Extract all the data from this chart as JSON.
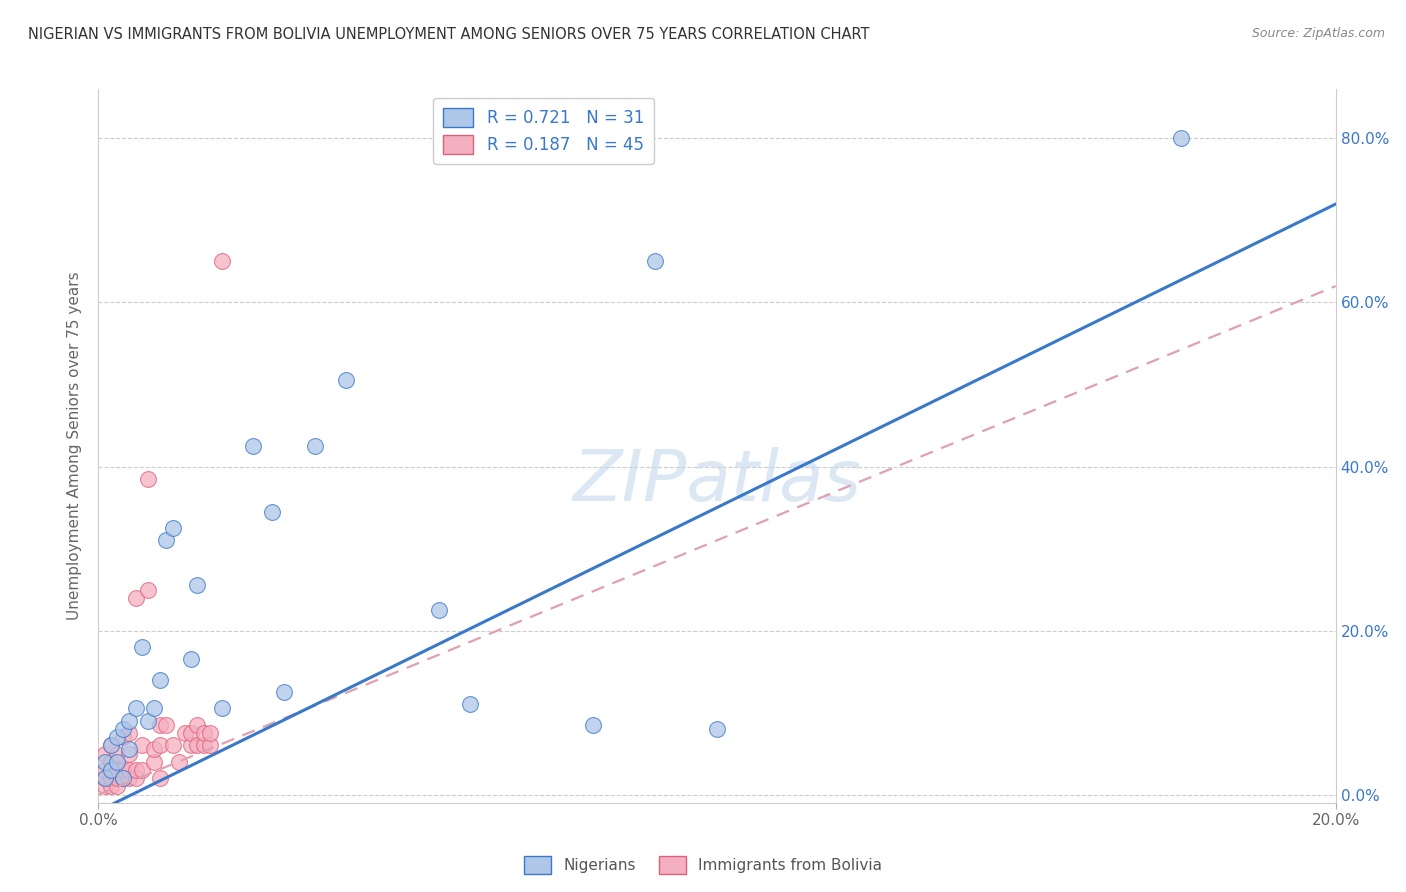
{
  "title": "NIGERIAN VS IMMIGRANTS FROM BOLIVIA UNEMPLOYMENT AMONG SENIORS OVER 75 YEARS CORRELATION CHART",
  "source": "Source: ZipAtlas.com",
  "ylabel": "Unemployment Among Seniors over 75 years",
  "watermark": "ZIPatlas",
  "R_nigerian": 0.721,
  "N_nigerian": 31,
  "R_bolivia": 0.187,
  "N_bolivia": 45,
  "xlim": [
    0.0,
    0.2
  ],
  "ylim": [
    -0.01,
    0.86
  ],
  "xticks": [
    0.0,
    0.2
  ],
  "xtick_labels": [
    "0.0%",
    "20.0%"
  ],
  "yticks_right": [
    0.0,
    0.2,
    0.4,
    0.6,
    0.8
  ],
  "ytick_labels_right": [
    "0.0%",
    "20.0%",
    "40.0%",
    "60.0%",
    "80.0%"
  ],
  "grid_yticks": [
    0.0,
    0.2,
    0.4,
    0.6,
    0.8
  ],
  "color_nigerian": "#aec6e8",
  "color_bolivia": "#f4afc0",
  "line_color_nigerian": "#3a78c9",
  "line_color_bolivia": "#e0607a",
  "line_color_bolivia_dashed": "#e0a0b0",
  "nigerian_line_x0": 0.0,
  "nigerian_line_y0": -0.02,
  "nigerian_line_x1": 0.2,
  "nigerian_line_y1": 0.72,
  "bolivia_line_x0": 0.0,
  "bolivia_line_y0": 0.0,
  "bolivia_line_x1": 0.2,
  "bolivia_line_y1": 0.62,
  "nigerian_x": [
    0.001,
    0.001,
    0.002,
    0.002,
    0.003,
    0.003,
    0.004,
    0.004,
    0.005,
    0.005,
    0.006,
    0.007,
    0.008,
    0.009,
    0.01,
    0.011,
    0.012,
    0.015,
    0.016,
    0.02,
    0.025,
    0.028,
    0.03,
    0.035,
    0.04,
    0.055,
    0.09,
    0.175,
    0.06,
    0.08,
    0.1
  ],
  "nigerian_y": [
    0.02,
    0.04,
    0.03,
    0.06,
    0.04,
    0.07,
    0.02,
    0.08,
    0.055,
    0.09,
    0.105,
    0.18,
    0.09,
    0.105,
    0.14,
    0.31,
    0.325,
    0.165,
    0.255,
    0.105,
    0.425,
    0.345,
    0.125,
    0.425,
    0.505,
    0.225,
    0.65,
    0.8,
    0.11,
    0.085,
    0.08
  ],
  "bolivia_x": [
    0.001,
    0.001,
    0.001,
    0.001,
    0.002,
    0.002,
    0.002,
    0.002,
    0.002,
    0.003,
    0.003,
    0.003,
    0.003,
    0.004,
    0.004,
    0.004,
    0.005,
    0.005,
    0.005,
    0.005,
    0.006,
    0.006,
    0.006,
    0.007,
    0.007,
    0.008,
    0.008,
    0.009,
    0.009,
    0.01,
    0.01,
    0.01,
    0.011,
    0.012,
    0.013,
    0.014,
    0.015,
    0.015,
    0.016,
    0.016,
    0.017,
    0.017,
    0.018,
    0.018,
    0.02
  ],
  "bolivia_y": [
    0.01,
    0.02,
    0.03,
    0.05,
    0.01,
    0.02,
    0.03,
    0.04,
    0.06,
    0.01,
    0.02,
    0.03,
    0.05,
    0.02,
    0.03,
    0.07,
    0.02,
    0.03,
    0.05,
    0.075,
    0.02,
    0.03,
    0.24,
    0.03,
    0.06,
    0.25,
    0.385,
    0.04,
    0.055,
    0.02,
    0.06,
    0.085,
    0.085,
    0.06,
    0.04,
    0.075,
    0.06,
    0.075,
    0.06,
    0.085,
    0.06,
    0.075,
    0.06,
    0.075,
    0.65
  ]
}
